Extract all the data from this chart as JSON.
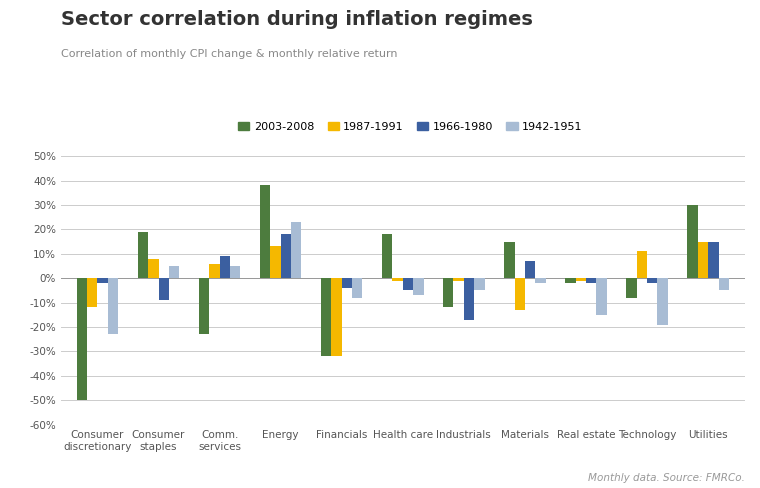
{
  "title": "Sector correlation during inflation regimes",
  "subtitle": "Correlation of monthly CPI change & monthly relative return",
  "footnote": "Monthly data. Source: FMRCo.",
  "categories": [
    "Consumer\ndiscretionary",
    "Consumer\nstaples",
    "Comm.\nservices",
    "Energy",
    "Financials",
    "Health care",
    "Industrials",
    "Materials",
    "Real estate",
    "Technology",
    "Utilities"
  ],
  "series": [
    {
      "label": "2003-2008",
      "color": "#4d7c3e",
      "values": [
        -50,
        19,
        -23,
        38,
        -32,
        18,
        -12,
        15,
        -2,
        -8,
        30
      ]
    },
    {
      "label": "1987-1991",
      "color": "#f5b800",
      "values": [
        -12,
        8,
        6,
        13,
        -32,
        -1,
        -1,
        -13,
        -1,
        11,
        15
      ]
    },
    {
      "label": "1966-1980",
      "color": "#3b5fa0",
      "values": [
        -2,
        -9,
        9,
        18,
        -4,
        -5,
        -17,
        7,
        -2,
        -2,
        15
      ]
    },
    {
      "label": "1942-1951",
      "color": "#a8bcd4",
      "values": [
        -23,
        5,
        5,
        23,
        -8,
        -7,
        -5,
        -2,
        -15,
        -19,
        -5
      ]
    }
  ],
  "ylim": [
    -60,
    50
  ],
  "yticks": [
    -60,
    -50,
    -40,
    -30,
    -20,
    -10,
    0,
    10,
    20,
    30,
    40,
    50
  ],
  "background_color": "#ffffff",
  "grid_color": "#cccccc",
  "title_fontsize": 14,
  "subtitle_fontsize": 8,
  "legend_fontsize": 8,
  "tick_fontsize": 7.5,
  "bar_width": 0.17
}
